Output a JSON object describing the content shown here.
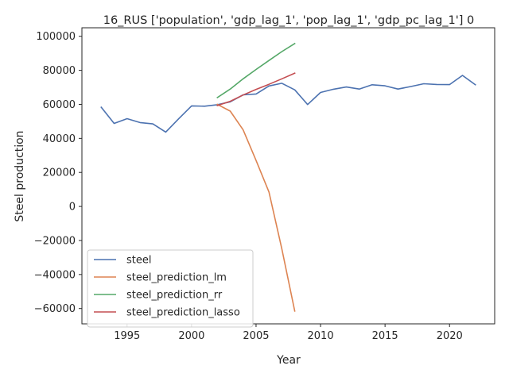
{
  "chart_data": {
    "type": "line",
    "title": "16_RUS ['population', 'gdp_lag_1', 'pop_lag_1', 'gdp_pc_lag_1'] 0",
    "xlabel": "Year",
    "ylabel": "Steel production",
    "xlim": [
      1991.5,
      2023.5
    ],
    "ylim": [
      -69000,
      105000
    ],
    "x_ticks": [
      1995,
      2000,
      2005,
      2010,
      2015,
      2020
    ],
    "y_ticks": [
      -60000,
      -40000,
      -20000,
      0,
      20000,
      40000,
      60000,
      80000,
      100000
    ],
    "x_tick_labels": [
      "1995",
      "2000",
      "2005",
      "2010",
      "2015",
      "2020"
    ],
    "y_tick_labels": [
      "−60000",
      "−40000",
      "−20000",
      "0",
      "20000",
      "40000",
      "60000",
      "80000",
      "100000"
    ],
    "grid": false,
    "legend_position": "lower-left",
    "series": [
      {
        "name": "steel",
        "color": "#4c72b0",
        "x": [
          1993,
          1994,
          1995,
          1996,
          1997,
          1998,
          1999,
          2000,
          2001,
          2002,
          2003,
          2004,
          2005,
          2006,
          2007,
          2008,
          2009,
          2010,
          2011,
          2012,
          2013,
          2014,
          2015,
          2016,
          2017,
          2018,
          2019,
          2020,
          2021,
          2022
        ],
        "y": [
          58300,
          48800,
          51600,
          49300,
          48500,
          43700,
          51500,
          59100,
          58900,
          59800,
          61500,
          65600,
          66100,
          70800,
          72400,
          68500,
          59900,
          67000,
          68900,
          70200,
          69000,
          71500,
          70900,
          69000,
          70500,
          72100,
          71700,
          71600,
          77000,
          71500
        ]
      },
      {
        "name": "steel_prediction_lm",
        "color": "#dd8452",
        "x": [
          2002,
          2003,
          2004,
          2005,
          2006,
          2007,
          2008
        ],
        "y": [
          60000,
          56000,
          45000,
          27000,
          8500,
          -25000,
          -61500
        ]
      },
      {
        "name": "steel_prediction_rr",
        "color": "#55a868",
        "x": [
          2002,
          2003,
          2004,
          2005,
          2006,
          2007,
          2008
        ],
        "y": [
          64000,
          69000,
          75000,
          80500,
          85800,
          91000,
          95700
        ]
      },
      {
        "name": "steel_prediction_lasso",
        "color": "#c44e52",
        "x": [
          2002,
          2003,
          2004,
          2005,
          2006,
          2007,
          2008
        ],
        "y": [
          59300,
          61800,
          65500,
          68800,
          71800,
          75000,
          78300
        ]
      }
    ]
  }
}
